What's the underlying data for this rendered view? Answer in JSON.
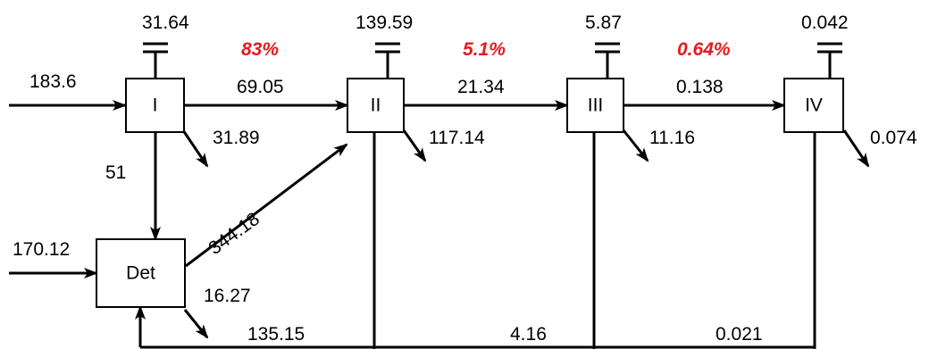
{
  "colors": {
    "line": "#000000",
    "efficiency": "#e8191f"
  },
  "nodes": {
    "n1": "I",
    "n2": "II",
    "n3": "III",
    "n4": "IV",
    "det": "Det"
  },
  "flows": {
    "import_1": "183.6",
    "import_det": "170.12",
    "respiration_1": "31.64",
    "respiration_2": "139.59",
    "respiration_3": "5.87",
    "respiration_4": "0.042",
    "transfer_1_2": "69.05",
    "transfer_2_3": "21.34",
    "transfer_3_4": "0.138",
    "export_1": "31.89",
    "export_2": "117.14",
    "export_3": "11.16",
    "export_4": "0.074",
    "to_det_1": "51",
    "det_to_2": "344.18",
    "export_det": "16.27",
    "return_2": "135.15",
    "return_3": "4.16",
    "return_4": "0.021"
  },
  "efficiencies": {
    "e1": "83%",
    "e2": "5.1%",
    "e3": "0.64%"
  }
}
